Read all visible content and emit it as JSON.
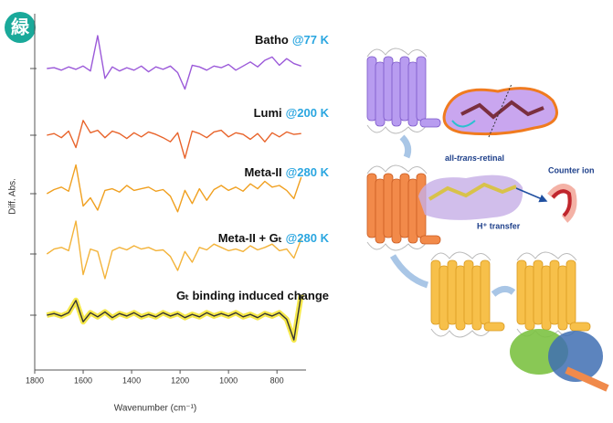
{
  "badge": "緑",
  "chart_data": {
    "type": "line",
    "ylabel": "Diff. Abs.",
    "xlabel": "Wavenumber (cm⁻¹)",
    "xlim": [
      1800,
      680
    ],
    "xticks": [
      1800,
      1600,
      1400,
      1200,
      1000,
      800
    ],
    "x": [
      1750,
      1720,
      1690,
      1660,
      1630,
      1600,
      1570,
      1540,
      1510,
      1480,
      1450,
      1420,
      1390,
      1360,
      1330,
      1300,
      1270,
      1240,
      1210,
      1180,
      1150,
      1120,
      1090,
      1060,
      1030,
      1000,
      970,
      940,
      910,
      880,
      850,
      820,
      790,
      760,
      730,
      700
    ],
    "series": [
      {
        "name": "Batho",
        "temperature": "@77 K",
        "color": "#9b59d9",
        "values": [
          0,
          1,
          -2,
          2,
          -1,
          3,
          -3,
          40,
          -12,
          2,
          -3,
          1,
          -2,
          3,
          -4,
          2,
          -1,
          3,
          -5,
          -25,
          4,
          2,
          -2,
          3,
          1,
          5,
          -2,
          3,
          8,
          2,
          10,
          14,
          4,
          12,
          6,
          3
        ]
      },
      {
        "name": "Lumi",
        "temperature": "@200 K",
        "color": "#e8632a",
        "values": [
          0,
          2,
          -3,
          5,
          -15,
          18,
          3,
          6,
          -3,
          5,
          2,
          -4,
          3,
          -2,
          4,
          1,
          -3,
          -8,
          3,
          -28,
          5,
          2,
          -3,
          4,
          6,
          -2,
          3,
          1,
          -5,
          2,
          -8,
          3,
          -2,
          4,
          1,
          2
        ]
      },
      {
        "name": "Meta-II",
        "temperature": "@280 K",
        "color": "#f0a020",
        "values": [
          0,
          5,
          8,
          3,
          35,
          -15,
          -5,
          -20,
          4,
          6,
          2,
          10,
          4,
          6,
          8,
          3,
          5,
          -3,
          -22,
          4,
          -12,
          6,
          -8,
          5,
          10,
          4,
          8,
          3,
          12,
          6,
          15,
          8,
          10,
          4,
          -6,
          20
        ]
      },
      {
        "name": "Meta-II + Gₜ",
        "temperature": "@280 K",
        "color": "#f3b33a",
        "values": [
          0,
          6,
          8,
          4,
          40,
          -25,
          6,
          3,
          -30,
          4,
          8,
          5,
          10,
          6,
          8,
          4,
          5,
          -3,
          -20,
          3,
          -10,
          8,
          5,
          12,
          8,
          4,
          6,
          3,
          10,
          5,
          8,
          12,
          4,
          6,
          -5,
          18
        ]
      },
      {
        "name": "Gₜ binding induced change",
        "color": "#333333",
        "glow": "#f5e84a",
        "values": [
          0,
          2,
          -1,
          3,
          18,
          -8,
          3,
          -2,
          4,
          -3,
          2,
          -1,
          3,
          -2,
          1,
          -2,
          3,
          -1,
          2,
          -3,
          1,
          -2,
          3,
          -1,
          2,
          -1,
          3,
          -2,
          1,
          -3,
          2,
          -1,
          3,
          -5,
          -30,
          25
        ]
      }
    ]
  },
  "diagram": {
    "retinal_label": [
      "all-",
      "trans",
      "-retinal"
    ],
    "counter_ion": "Counter ion",
    "proton_transfer": "H⁺ transfer"
  }
}
